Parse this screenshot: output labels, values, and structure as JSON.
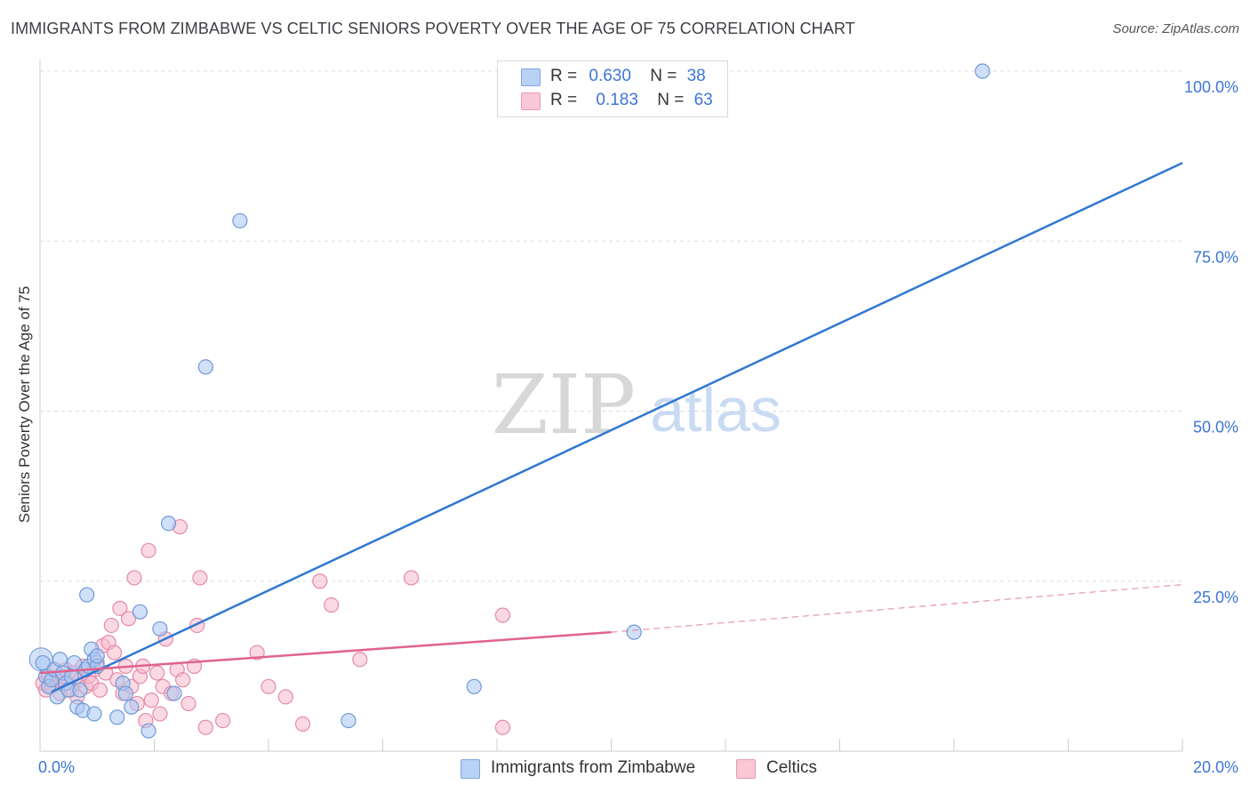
{
  "header": {
    "title": "IMMIGRANTS FROM ZIMBABWE VS CELTIC SENIORS POVERTY OVER THE AGE OF 75 CORRELATION CHART",
    "source": "Source: ZipAtlas.com"
  },
  "watermark": {
    "zip": "ZIP",
    "atlas": "atlas"
  },
  "legend": {
    "series1": {
      "r_label": "R =",
      "r_value": "0.630",
      "n_label": "N =",
      "n_value": "38"
    },
    "series2": {
      "r_label": "R =",
      "r_value": "0.183",
      "n_label": "N =",
      "n_value": "63"
    }
  },
  "colors": {
    "blue_fill": "#a9c6f2",
    "blue_stroke": "#6f9ad8",
    "blue_line": "#2f78d3",
    "pink_fill": "#f6b9cc",
    "pink_stroke": "#e58aa8",
    "pink_line": "#e0628e",
    "tick_label": "#3d75d6",
    "grid": "#dddddd"
  },
  "chart_data": {
    "type": "scatter",
    "title": "IMMIGRANTS FROM ZIMBABWE VS CELTIC SENIORS POVERTY OVER THE AGE OF 75 CORRELATION CHART",
    "xlabel": "",
    "ylabel": "Seniors Poverty Over the Age of 75",
    "xlim": [
      0,
      20
    ],
    "ylim": [
      0,
      100
    ],
    "x_tick_labels": [
      "0.0%",
      "20.0%"
    ],
    "y_ticks": [
      25,
      50,
      75,
      100
    ],
    "y_tick_labels": [
      "25.0%",
      "50.0%",
      "75.0%",
      "100.0%"
    ],
    "legend_position": "top-center",
    "series": [
      {
        "name": "Immigrants from Zimbabwe",
        "color": "blue",
        "r": 0.63,
        "n": 38,
        "trend": {
          "x0": 0.2,
          "y0": 8.7,
          "x1": 20.0,
          "y1": 86.5
        },
        "points": [
          [
            0.05,
            13.0
          ],
          [
            0.1,
            11.0
          ],
          [
            0.15,
            9.5
          ],
          [
            0.2,
            10.5
          ],
          [
            0.25,
            12.0
          ],
          [
            0.3,
            8.0
          ],
          [
            0.35,
            13.5
          ],
          [
            0.4,
            11.5
          ],
          [
            0.45,
            10.0
          ],
          [
            0.5,
            9.0
          ],
          [
            0.55,
            11.0
          ],
          [
            0.6,
            13.0
          ],
          [
            0.65,
            6.5
          ],
          [
            0.7,
            9.0
          ],
          [
            0.75,
            6.0
          ],
          [
            0.8,
            12.0
          ],
          [
            0.85,
            12.5
          ],
          [
            0.9,
            15.0
          ],
          [
            0.95,
            13.5
          ],
          [
            1.0,
            12.5
          ],
          [
            1.35,
            5.0
          ],
          [
            1.45,
            10.0
          ],
          [
            1.5,
            8.5
          ],
          [
            1.6,
            6.5
          ],
          [
            1.75,
            20.5
          ],
          [
            1.9,
            3.0
          ],
          [
            2.1,
            18.0
          ],
          [
            2.25,
            33.5
          ],
          [
            2.35,
            8.5
          ],
          [
            2.9,
            56.5
          ],
          [
            3.5,
            78.0
          ],
          [
            5.4,
            4.5
          ],
          [
            7.6,
            9.5
          ],
          [
            10.4,
            17.5
          ],
          [
            16.5,
            100.0
          ],
          [
            0.82,
            23.0
          ],
          [
            1.0,
            14.0
          ],
          [
            0.95,
            5.5
          ]
        ]
      },
      {
        "name": "Celtics",
        "color": "pink",
        "r": 0.183,
        "n": 63,
        "trend": {
          "x0": 0.0,
          "y0": 11.5,
          "x1": 10.0,
          "y1": 17.5
        },
        "trend_extension": {
          "x0": 10.0,
          "y0": 17.5,
          "x1": 20.0,
          "y1": 24.5
        },
        "points": [
          [
            0.05,
            10.0
          ],
          [
            0.1,
            9.0
          ],
          [
            0.15,
            11.0
          ],
          [
            0.2,
            9.5
          ],
          [
            0.25,
            12.0
          ],
          [
            0.3,
            10.5
          ],
          [
            0.35,
            8.5
          ],
          [
            0.4,
            11.0
          ],
          [
            0.45,
            12.0
          ],
          [
            0.5,
            10.0
          ],
          [
            0.55,
            9.0
          ],
          [
            0.6,
            11.5
          ],
          [
            0.65,
            8.0
          ],
          [
            0.7,
            10.5
          ],
          [
            0.75,
            12.5
          ],
          [
            0.8,
            9.5
          ],
          [
            0.85,
            11.0
          ],
          [
            0.9,
            10.0
          ],
          [
            0.95,
            12.0
          ],
          [
            1.0,
            13.0
          ],
          [
            1.05,
            9.0
          ],
          [
            1.1,
            15.5
          ],
          [
            1.15,
            11.5
          ],
          [
            1.2,
            16.0
          ],
          [
            1.25,
            18.5
          ],
          [
            1.3,
            14.5
          ],
          [
            1.35,
            10.5
          ],
          [
            1.4,
            21.0
          ],
          [
            1.45,
            8.5
          ],
          [
            1.5,
            12.5
          ],
          [
            1.55,
            19.5
          ],
          [
            1.6,
            9.5
          ],
          [
            1.65,
            25.5
          ],
          [
            1.7,
            7.0
          ],
          [
            1.75,
            11.0
          ],
          [
            1.8,
            12.5
          ],
          [
            1.85,
            4.5
          ],
          [
            1.9,
            29.5
          ],
          [
            1.95,
            7.5
          ],
          [
            2.05,
            11.5
          ],
          [
            2.1,
            5.5
          ],
          [
            2.15,
            9.5
          ],
          [
            2.2,
            16.5
          ],
          [
            2.3,
            8.5
          ],
          [
            2.4,
            12.0
          ],
          [
            2.45,
            33.0
          ],
          [
            2.5,
            10.5
          ],
          [
            2.6,
            7.0
          ],
          [
            2.7,
            12.5
          ],
          [
            2.75,
            18.5
          ],
          [
            2.8,
            25.5
          ],
          [
            2.9,
            3.5
          ],
          [
            3.2,
            4.5
          ],
          [
            3.8,
            14.5
          ],
          [
            4.0,
            9.5
          ],
          [
            4.3,
            8.0
          ],
          [
            4.6,
            4.0
          ],
          [
            4.9,
            25.0
          ],
          [
            5.1,
            21.5
          ],
          [
            5.6,
            13.5
          ],
          [
            6.5,
            25.5
          ],
          [
            8.1,
            20.0
          ],
          [
            8.1,
            3.5
          ]
        ]
      }
    ]
  }
}
